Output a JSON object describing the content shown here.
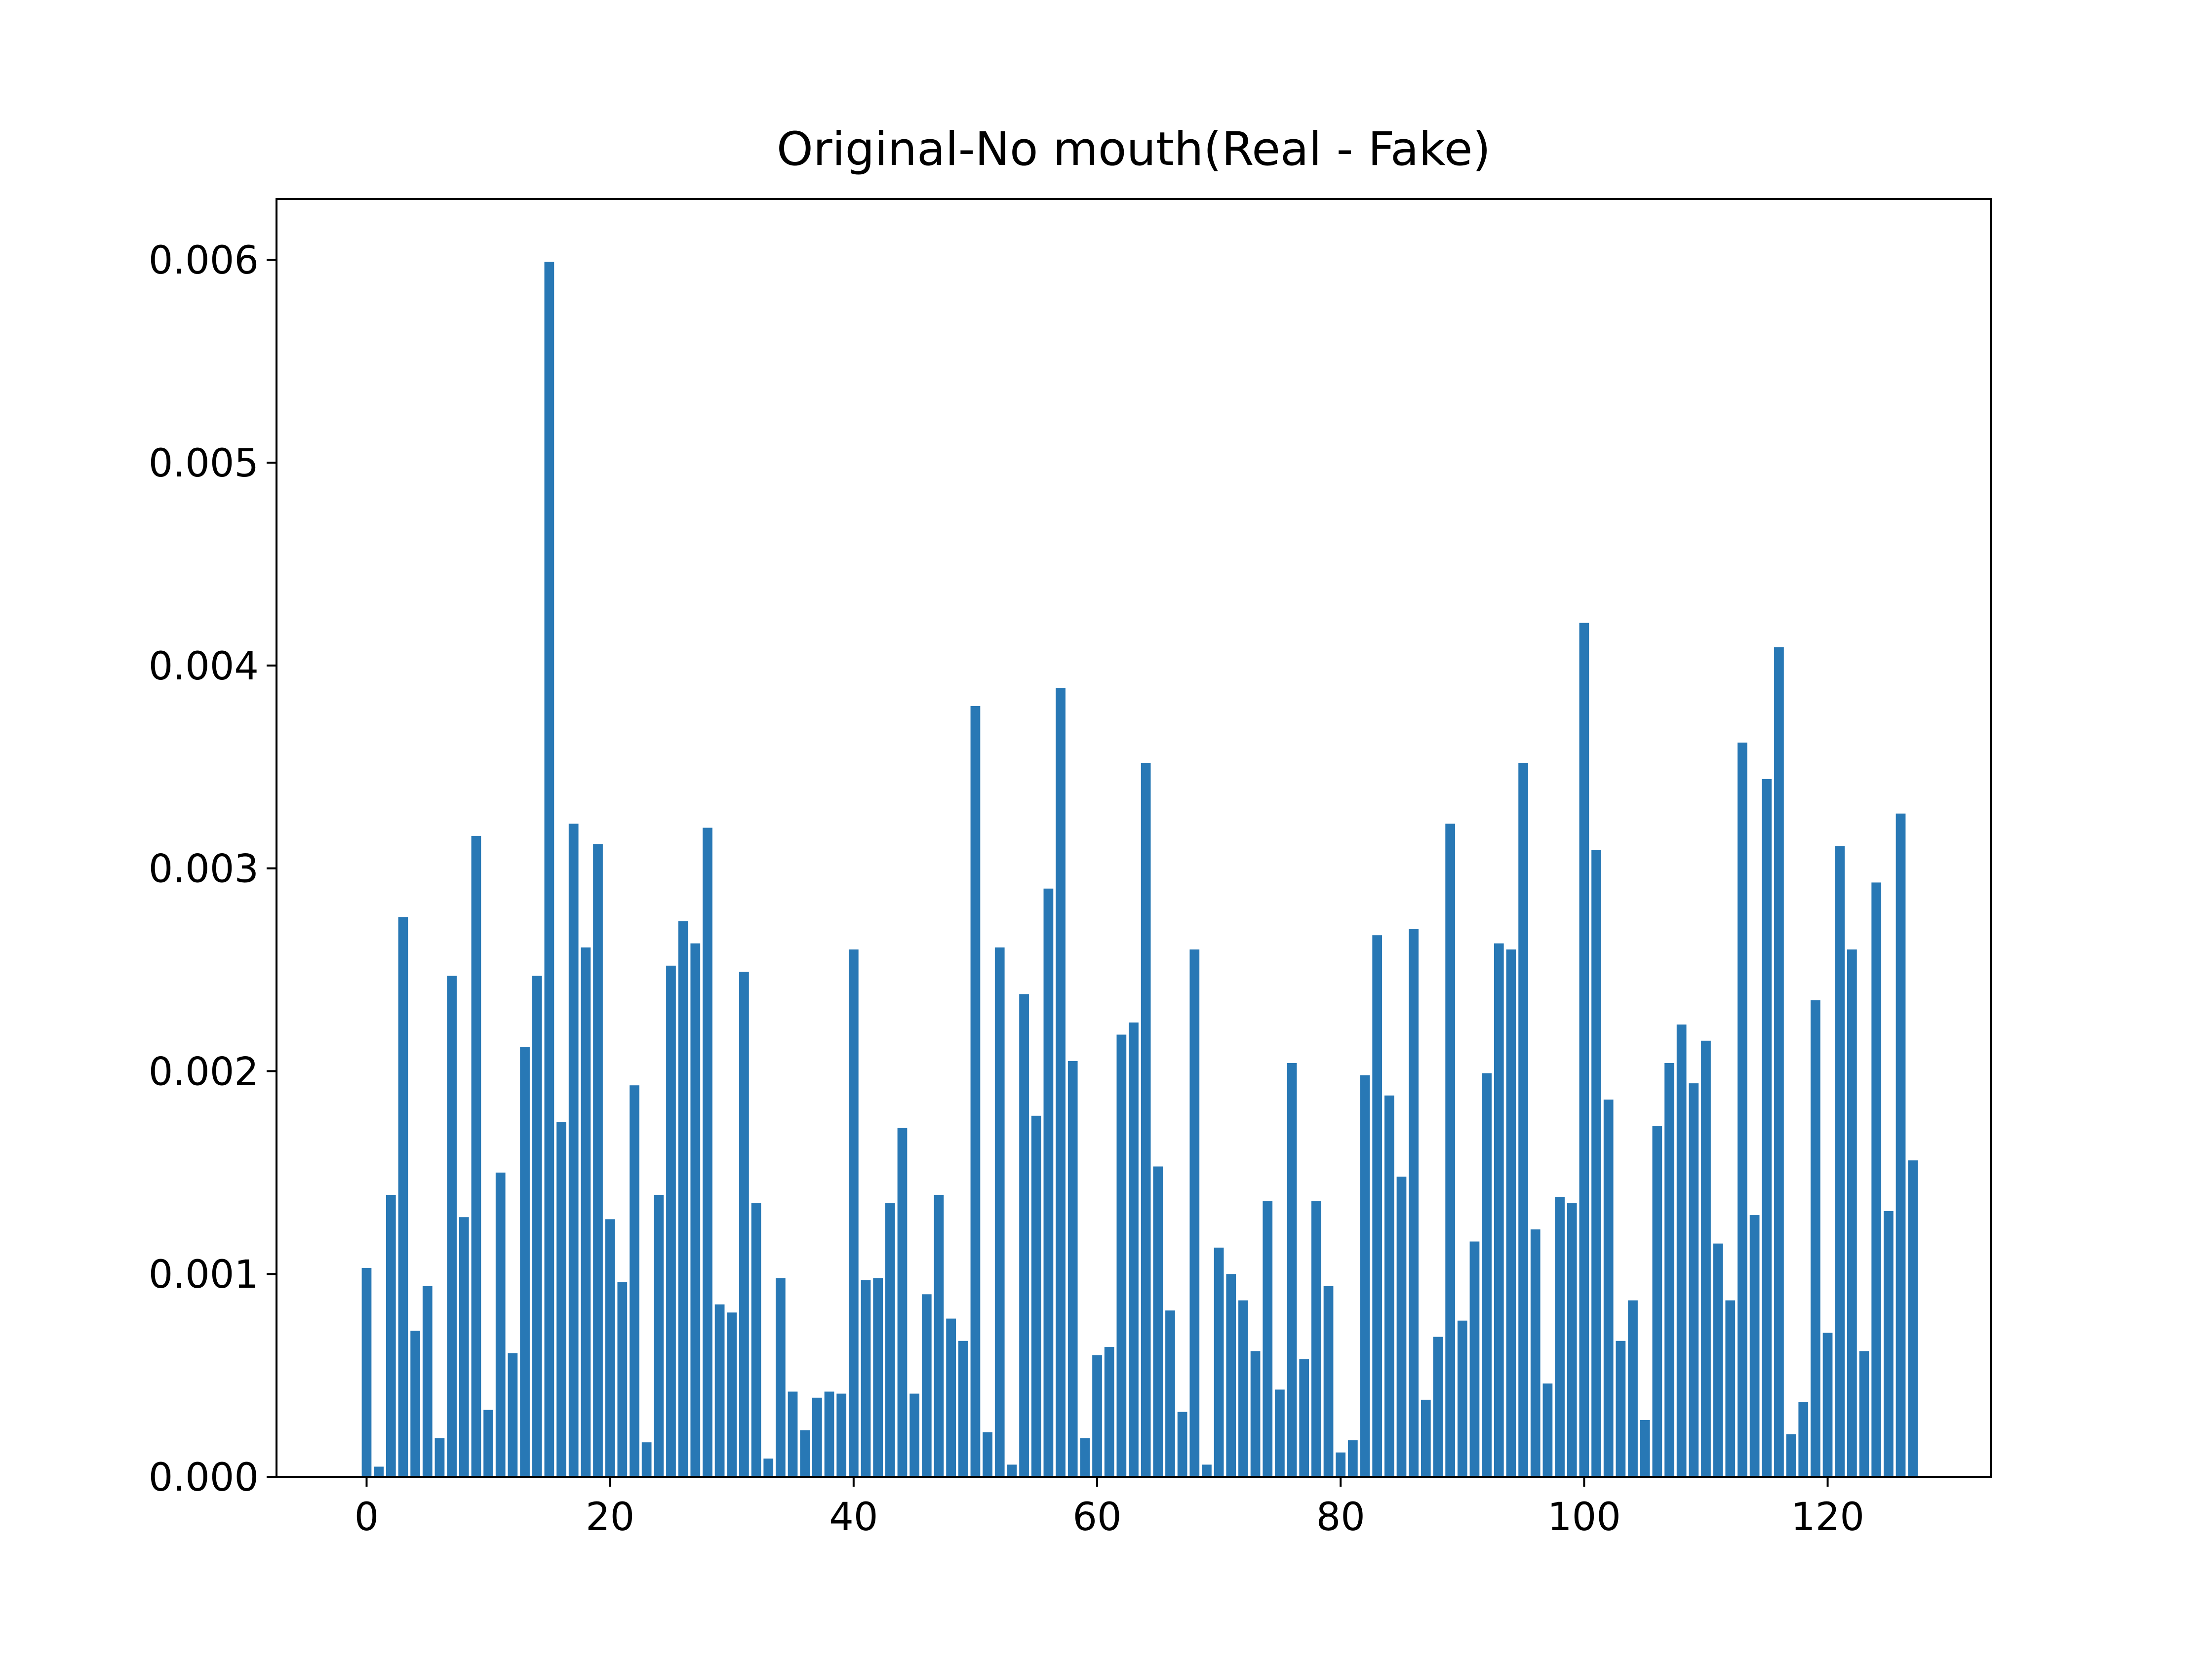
{
  "chart_data": {
    "type": "bar",
    "title": "Original-No mouth(Real - Fake)",
    "xlabel": "",
    "ylabel": "",
    "bar_color": "#2878b5",
    "xlim": [
      -7.4,
      133.4
    ],
    "ylim": [
      0,
      0.0063
    ],
    "xticks": [
      0,
      20,
      40,
      60,
      80,
      100,
      120
    ],
    "yticks": [
      0.0,
      0.001,
      0.002,
      0.003,
      0.004,
      0.005,
      0.006
    ],
    "ytick_labels": [
      "0.000",
      "0.001",
      "0.002",
      "0.003",
      "0.004",
      "0.005",
      "0.006"
    ],
    "grid": false,
    "legend": "none",
    "categories": [
      0,
      1,
      2,
      3,
      4,
      5,
      6,
      7,
      8,
      9,
      10,
      11,
      12,
      13,
      14,
      15,
      16,
      17,
      18,
      19,
      20,
      21,
      22,
      23,
      24,
      25,
      26,
      27,
      28,
      29,
      30,
      31,
      32,
      33,
      34,
      35,
      36,
      37,
      38,
      39,
      40,
      41,
      42,
      43,
      44,
      45,
      46,
      47,
      48,
      49,
      50,
      51,
      52,
      53,
      54,
      55,
      56,
      57,
      58,
      59,
      60,
      61,
      62,
      63,
      64,
      65,
      66,
      67,
      68,
      69,
      70,
      71,
      72,
      73,
      74,
      75,
      76,
      77,
      78,
      79,
      80,
      81,
      82,
      83,
      84,
      85,
      86,
      87,
      88,
      89,
      90,
      91,
      92,
      93,
      94,
      95,
      96,
      97,
      98,
      99,
      100,
      101,
      102,
      103,
      104,
      105,
      106,
      107,
      108,
      109,
      110,
      111,
      112,
      113,
      114,
      115,
      116,
      117,
      118,
      119,
      120,
      121,
      122,
      123,
      124,
      125,
      126,
      127
    ],
    "values": [
      0.00103,
      5e-05,
      0.00139,
      0.00276,
      0.00072,
      0.00094,
      0.00019,
      0.00247,
      0.00128,
      0.00316,
      0.00033,
      0.0015,
      0.00061,
      0.00212,
      0.00247,
      0.00599,
      0.00175,
      0.00322,
      0.00261,
      0.00312,
      0.00127,
      0.00096,
      0.00193,
      0.00017,
      0.00139,
      0.00252,
      0.00274,
      0.00263,
      0.0032,
      0.00085,
      0.00081,
      0.00249,
      0.00135,
      9e-05,
      0.00098,
      0.00042,
      0.00023,
      0.00039,
      0.00042,
      0.00041,
      0.0026,
      0.00097,
      0.00098,
      0.00135,
      0.00172,
      0.00041,
      0.0009,
      0.00139,
      0.00078,
      0.00067,
      0.0038,
      0.00022,
      0.00261,
      6e-05,
      0.00238,
      0.00178,
      0.0029,
      0.00389,
      0.00205,
      0.00019,
      0.0006,
      0.00064,
      0.00218,
      0.00224,
      0.00352,
      0.00153,
      0.00082,
      0.00032,
      0.0026,
      6e-05,
      0.00113,
      0.001,
      0.00087,
      0.00062,
      0.00136,
      0.00043,
      0.00204,
      0.00058,
      0.00136,
      0.00094,
      0.00012,
      0.00018,
      0.00198,
      0.00267,
      0.00188,
      0.00148,
      0.0027,
      0.00038,
      0.00069,
      0.00322,
      0.00077,
      0.00116,
      0.00199,
      0.00263,
      0.0026,
      0.00352,
      0.00122,
      0.00046,
      0.00138,
      0.00135,
      0.00421,
      0.00309,
      0.00186,
      0.00067,
      0.00087,
      0.00028,
      0.00173,
      0.00204,
      0.00223,
      0.00194,
      0.00215,
      0.00115,
      0.00087,
      0.00362,
      0.00129,
      0.00344,
      0.00409,
      0.00021,
      0.00037,
      0.00235,
      0.00071,
      0.00311,
      0.0026,
      0.00062,
      0.00293,
      0.00131,
      0.00327,
      0.00156
    ]
  }
}
